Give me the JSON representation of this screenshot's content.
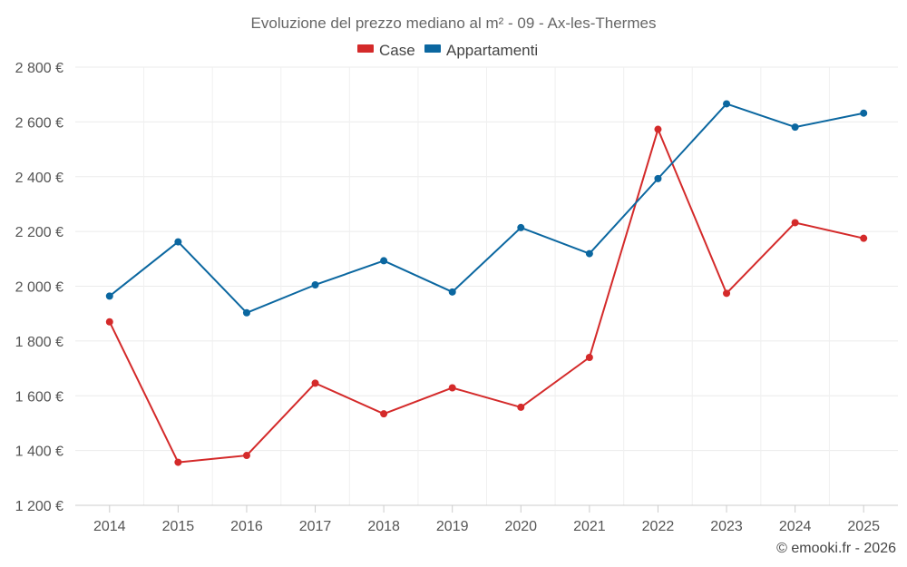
{
  "chart_data": {
    "type": "line",
    "title": "Evoluzione del prezzo mediano al m² - 09 - Ax-les-Thermes",
    "x": [
      "2014",
      "2015",
      "2016",
      "2017",
      "2018",
      "2019",
      "2020",
      "2021",
      "2022",
      "2023",
      "2024",
      "2025"
    ],
    "ylim": [
      1200,
      2800
    ],
    "yticks": [
      1200,
      1400,
      1600,
      1800,
      2000,
      2200,
      2400,
      2600,
      2800
    ],
    "ytick_labels": [
      "1 200 €",
      "1 400 €",
      "1 600 €",
      "1 800 €",
      "2 000 €",
      "2 200 €",
      "2 400 €",
      "2 600 €",
      "2 800 €"
    ],
    "grid": true,
    "legend_position": "top-center",
    "series": [
      {
        "name": "Case",
        "color": "#d42a2a",
        "values": [
          1870,
          1357,
          1382,
          1646,
          1534,
          1629,
          1558,
          1740,
          2573,
          1974,
          2232,
          2175
        ]
      },
      {
        "name": "Appartamenti",
        "color": "#0b67a0",
        "values": [
          1964,
          2162,
          1903,
          2005,
          2093,
          1979,
          2214,
          2119,
          2393,
          2666,
          2581,
          2632
        ]
      }
    ],
    "credit": "© emooki.fr - 2026"
  }
}
